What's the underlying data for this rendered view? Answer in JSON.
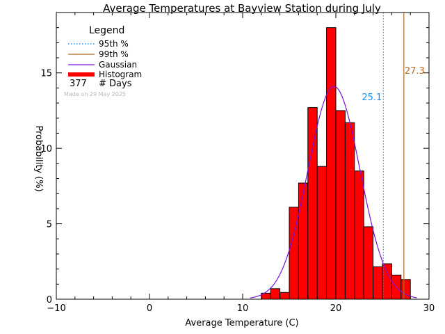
{
  "chart_data": {
    "type": "bar",
    "title": "Average Temperatures at Bayview Station during July",
    "xlabel": "Average Temperature (C)",
    "ylabel": "Probability (%)",
    "xlim": [
      -10,
      30
    ],
    "ylim": [
      0,
      19
    ],
    "x_ticks": [
      -10,
      0,
      10,
      20,
      30
    ],
    "y_ticks": [
      0,
      5,
      10,
      15
    ],
    "bin_width": 1,
    "bins": [
      {
        "x0": 12,
        "value": 0.4
      },
      {
        "x0": 13,
        "value": 0.7
      },
      {
        "x0": 14,
        "value": 0.45
      },
      {
        "x0": 15,
        "value": 6.1
      },
      {
        "x0": 16,
        "value": 7.7
      },
      {
        "x0": 17,
        "value": 12.7
      },
      {
        "x0": 18,
        "value": 8.8
      },
      {
        "x0": 19,
        "value": 18.0
      },
      {
        "x0": 20,
        "value": 12.5
      },
      {
        "x0": 21,
        "value": 11.7
      },
      {
        "x0": 22,
        "value": 8.5
      },
      {
        "x0": 23,
        "value": 4.8
      },
      {
        "x0": 24,
        "value": 2.15
      },
      {
        "x0": 25,
        "value": 2.35
      },
      {
        "x0": 26,
        "value": 1.6
      },
      {
        "x0": 27,
        "value": 1.3
      }
    ],
    "gaussian": {
      "mean": 19.8,
      "sd": 2.8,
      "peak": 14.1
    },
    "percentile_95": {
      "value": 25.1,
      "label": "25.1"
    },
    "percentile_99": {
      "value": 27.3,
      "label": "27.3"
    },
    "legend": {
      "title": "Legend",
      "placement": "top-left",
      "items": [
        {
          "label": "95th %",
          "style": "dotted",
          "color": "#1a8ce6"
        },
        {
          "label": "99th %",
          "style": "solid",
          "color": "#b36b1f"
        },
        {
          "label": "Gaussian",
          "style": "solid",
          "color": "#7a10d8"
        },
        {
          "label": "Histogram",
          "style": "thick",
          "color": "#ff0000"
        }
      ],
      "days_count": "377",
      "days_label": "# Days"
    },
    "made_on": "Made on 29 May 2025",
    "colors": {
      "bar": "#ff0000",
      "gaussian": "#7a10d8",
      "p95": "#1a8ce6",
      "p99": "#b36b1f"
    }
  }
}
